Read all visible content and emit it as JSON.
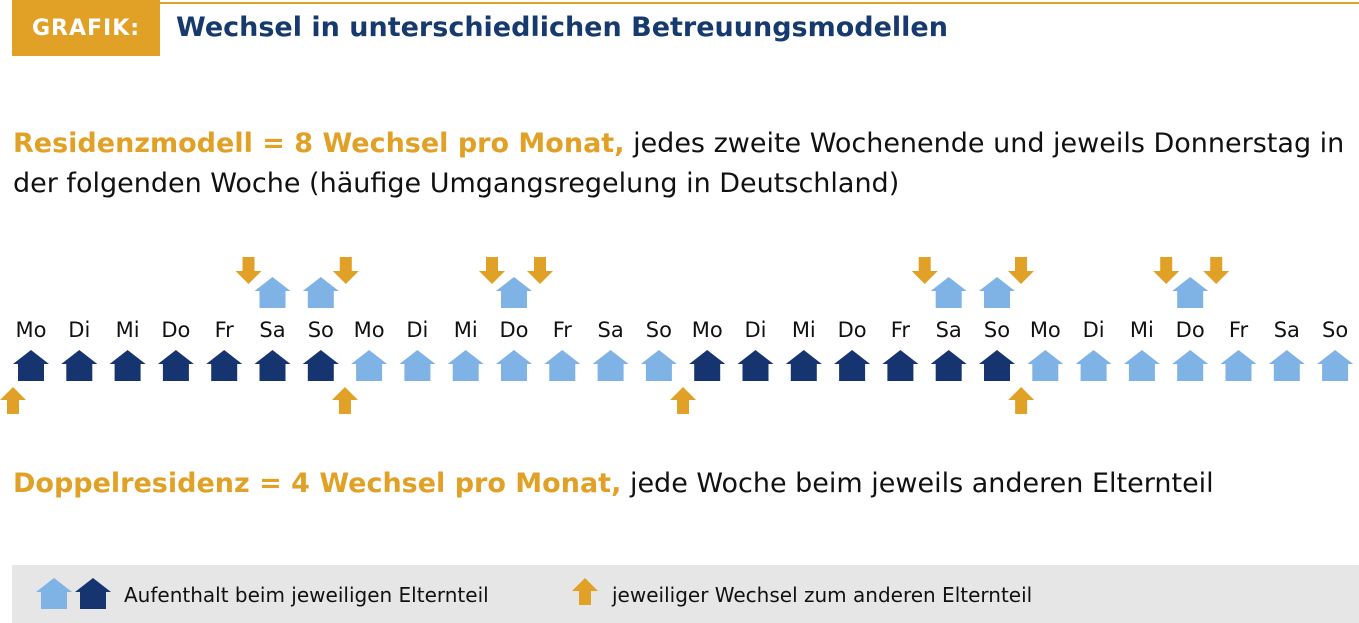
{
  "header": {
    "label": "GRAFIK:",
    "title": "Wechsel in unterschiedlichen Betreuungsmodellen"
  },
  "residenzmodell": {
    "highlight": "Residenzmodell = 8 Wechsel pro Monat,",
    "text": "jedes zweite Wochenende und jeweils Donnerstag in der folgenden Woche (häufige Umgangsregelung in Deutschland)"
  },
  "days": [
    "Mo",
    "Di",
    "Mi",
    "Do",
    "Fr",
    "Sa",
    "So",
    "Mo",
    "Di",
    "Mi",
    "Do",
    "Fr",
    "Sa",
    "So",
    "Mo",
    "Di",
    "Mi",
    "Do",
    "Fr",
    "Sa",
    "So",
    "Mo",
    "Di",
    "Mi",
    "Do",
    "Fr",
    "Sa",
    "So"
  ],
  "doppelresidenz": {
    "highlight": "Doppelresidenz = 4 Wechsel pro Monat,",
    "text": "jede Woche beim jeweils anderen Elternteil"
  },
  "legend": {
    "houses": "Aufenthalt beim jeweiligen Elternteil",
    "arrow": "jeweiliger Wechsel zum anderen Elternteil"
  }
}
